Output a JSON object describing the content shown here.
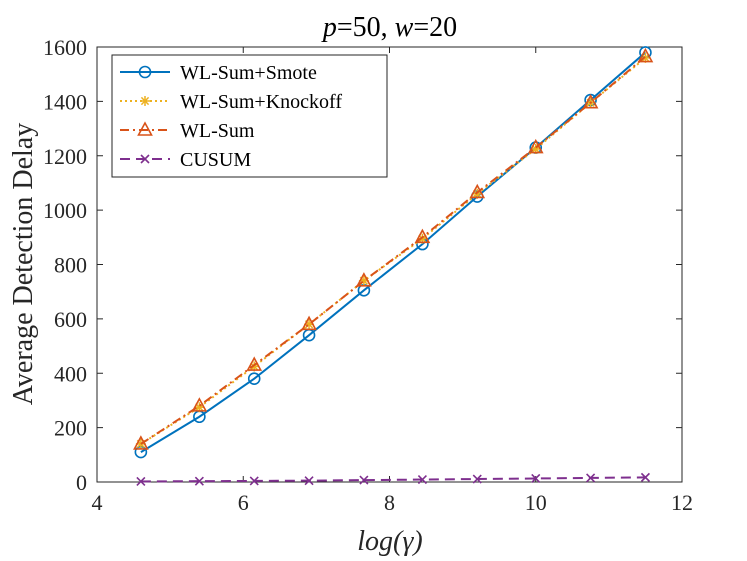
{
  "chart_data": {
    "type": "line",
    "title": "p=50, w=20",
    "xlabel": "log(γ)",
    "ylabel": "Average Detection Delay",
    "xlim": [
      4,
      12
    ],
    "ylim": [
      0,
      1600
    ],
    "xticks": [
      4,
      6,
      8,
      10,
      12
    ],
    "yticks": [
      0,
      200,
      400,
      600,
      800,
      1000,
      1200,
      1400,
      1600
    ],
    "grid": false,
    "legend_position": "top-left",
    "x": [
      4.6,
      5.4,
      6.15,
      6.9,
      7.65,
      8.45,
      9.2,
      10.0,
      10.75,
      11.5
    ],
    "series": [
      {
        "name": "WL-Sum+Smote",
        "color": "#0072BD",
        "line": "solid",
        "marker": "circle",
        "values": [
          110,
          240,
          380,
          540,
          705,
          875,
          1050,
          1230,
          1405,
          1580
        ]
      },
      {
        "name": "WL-Sum+Knockoff",
        "color": "#EDB120",
        "line": "dotted",
        "marker": "asterisk",
        "values": [
          140,
          275,
          425,
          580,
          740,
          895,
          1060,
          1225,
          1395,
          1560
        ]
      },
      {
        "name": "WL-Sum",
        "color": "#D95319",
        "line": "dashdot",
        "marker": "triangle",
        "values": [
          140,
          280,
          430,
          580,
          740,
          900,
          1065,
          1230,
          1395,
          1565
        ]
      },
      {
        "name": "CUSUM",
        "color": "#7E2F8E",
        "line": "dashed",
        "marker": "x",
        "values": [
          2,
          3,
          4,
          5,
          7,
          9,
          11,
          13,
          15,
          17
        ]
      }
    ]
  }
}
